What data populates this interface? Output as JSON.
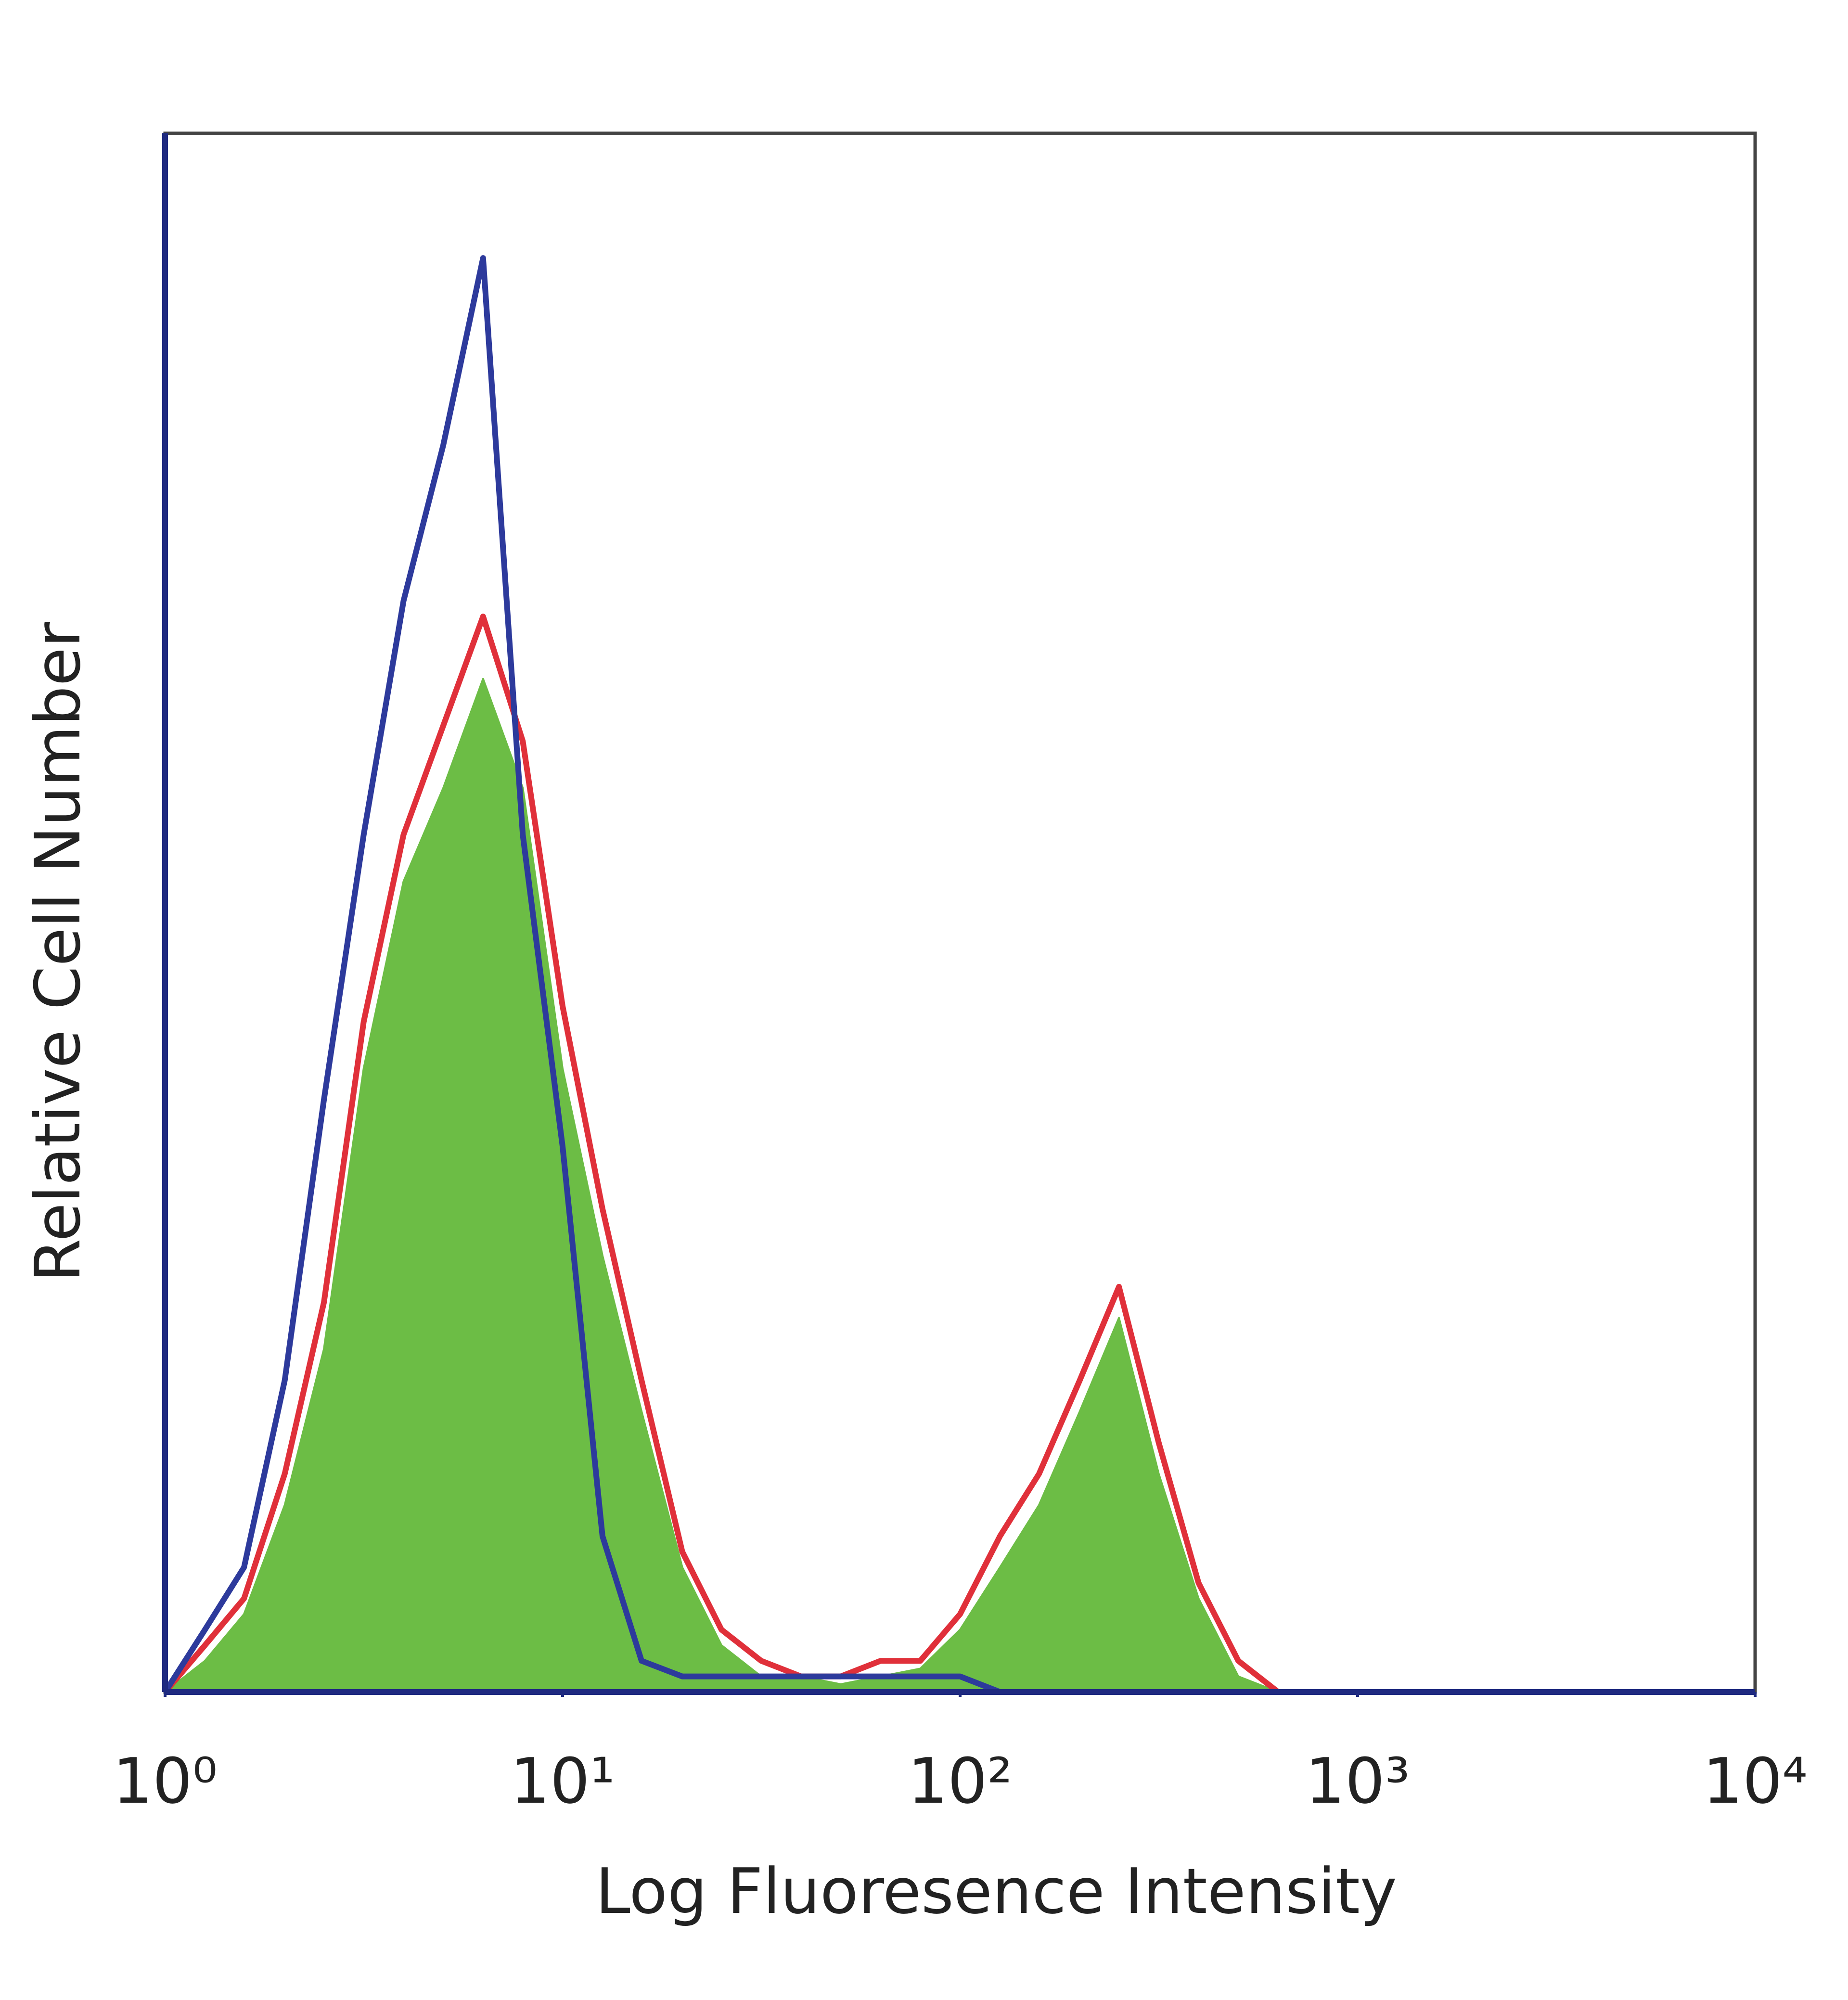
{
  "chart_data": {
    "type": "histogram",
    "x_label": "Log Fluoresence Intensity",
    "y_label": "Relative Cell Number",
    "x_scale": "log",
    "xlim": [
      1,
      10000
    ],
    "ylim": [
      0,
      100
    ],
    "xticks": [
      {
        "value": 1,
        "label": "10⁰"
      },
      {
        "value": 10,
        "label": "10¹"
      },
      {
        "value": 100,
        "label": "10²"
      },
      {
        "value": 1000,
        "label": "10³"
      },
      {
        "value": 10000,
        "label": "10⁴"
      }
    ],
    "x": [
      1,
      1.26,
      1.58,
      2,
      2.51,
      3.16,
      3.98,
      5.01,
      6.31,
      7.94,
      10,
      12.6,
      15.8,
      20,
      25.1,
      31.6,
      39.8,
      50.1,
      63.1,
      79.4,
      100,
      126,
      158,
      200,
      251,
      316,
      398,
      501,
      631
    ],
    "series": [
      {
        "name": "Green",
        "color": "#6cbd45",
        "filled": true,
        "values": [
          0,
          2,
          5,
          12,
          22,
          40,
          52,
          58,
          65,
          58,
          40,
          28,
          18,
          8,
          3,
          1,
          1,
          0.5,
          1,
          1.5,
          4,
          8,
          12,
          18,
          24,
          14,
          6,
          1,
          0
        ]
      },
      {
        "name": "Red",
        "color": "#e0303a",
        "filled": false,
        "values": [
          0,
          3,
          6,
          14,
          25,
          43,
          55,
          62,
          69,
          61,
          44,
          31,
          20,
          9,
          4,
          2,
          1,
          1,
          2,
          2,
          5,
          10,
          14,
          20,
          26,
          16,
          7,
          2,
          0
        ]
      },
      {
        "name": "Blue",
        "color": "#2d3a9c",
        "filled": false,
        "values": [
          0,
          4,
          8,
          20,
          38,
          55,
          70,
          80,
          92,
          55,
          35,
          10,
          2,
          1,
          1,
          1,
          1,
          1,
          1,
          1,
          1,
          0,
          0,
          0,
          0,
          0,
          0,
          0,
          0
        ]
      }
    ]
  }
}
